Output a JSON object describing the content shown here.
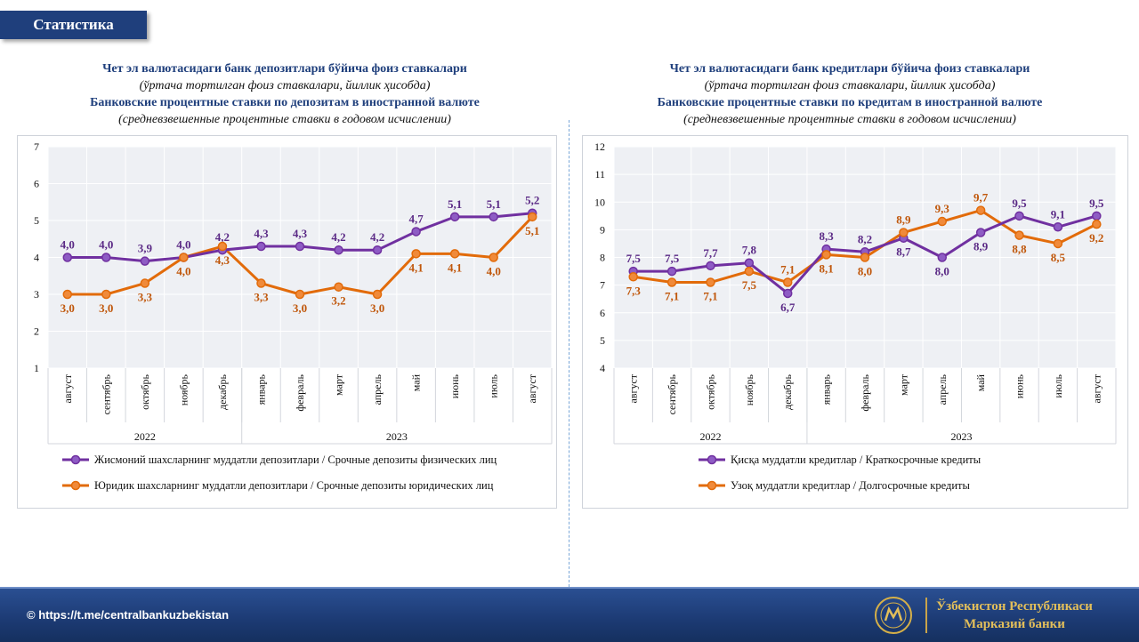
{
  "header": {
    "tab_label": "Статистика"
  },
  "left_title": {
    "line1": "Чет эл валютасидаги банк депозитлари бўйича фоиз ставкалари",
    "line2": "(ўртача тортилган фоиз ставкалари, йиллик ҳисобда)",
    "line3": "Банковские процентные ставки по депозитам в иностранной  валюте",
    "line4": "(средневзвешенные процентные ставки в годовом исчислении)"
  },
  "right_title": {
    "line1": "Чет эл валютасидаги банк кредитлари бўйича фоиз ставкалари",
    "line2": "(ўртача тортилган фоиз ставкалари, йиллик ҳисобда)",
    "line3": "Банковские процентные ставки по кредитам в иностранной  валюте",
    "line4": "(средневзвешенные процентные ставки в годовом исчислении)"
  },
  "footer": {
    "link": "© https://t.me/centralbankuzbekistan",
    "org_line1": "Ўзбекистон Республикаси",
    "org_line2": "Марказий банки"
  },
  "chart_data": [
    {
      "type": "line",
      "categories": [
        "август",
        "сентябрь",
        "октябрь",
        "ноябрь",
        "декабрь",
        "январь",
        "февраль",
        "март",
        "апрель",
        "май",
        "июнь",
        "июль",
        "август"
      ],
      "year_groups": [
        {
          "label": "2022",
          "count": 5
        },
        {
          "label": "2023",
          "count": 8
        }
      ],
      "ylim": [
        1,
        7
      ],
      "yticks": [
        1,
        2,
        3,
        4,
        5,
        6,
        7
      ],
      "grid": true,
      "legend_position": "bottom",
      "series": [
        {
          "name": "Жисмоний  шахсларнинг  муддатли  депозитлари  / Срочные депозиты  физических  лиц",
          "color": "#7030a0",
          "values": [
            4.0,
            4.0,
            3.9,
            4.0,
            4.2,
            4.3,
            4.3,
            4.2,
            4.2,
            4.7,
            5.1,
            5.1,
            5.2
          ],
          "labels": [
            "4,0",
            "4,0",
            "3,9",
            "4,0",
            "4,2",
            "4,3",
            "4,3",
            "4,2",
            "4,2",
            "4,7",
            "5,1",
            "5,1",
            "5,2"
          ],
          "label_pos": [
            "above",
            "above",
            "above",
            "above",
            "above",
            "above",
            "above",
            "above",
            "above",
            "above",
            "above",
            "above",
            "above"
          ]
        },
        {
          "name": "Юридик  шахсларнинг  муддатли  депозитлари  / Срочные депозиты  юридических  лиц",
          "color": "#e26b0a",
          "values": [
            3.0,
            3.0,
            3.3,
            4.0,
            4.3,
            3.3,
            3.0,
            3.2,
            3.0,
            4.1,
            4.1,
            4.0,
            5.1
          ],
          "labels": [
            "3,0",
            "3,0",
            "3,3",
            "4,0",
            "4,3",
            "3,3",
            "3,0",
            "3,2",
            "3,0",
            "4,1",
            "4,1",
            "4,0",
            "5,1"
          ],
          "label_pos": [
            "below",
            "below",
            "below",
            "below",
            "below",
            "below",
            "below",
            "below",
            "below",
            "below",
            "below",
            "below",
            "below"
          ]
        }
      ]
    },
    {
      "type": "line",
      "categories": [
        "август",
        "сентябрь",
        "октябрь",
        "ноябрь",
        "декабрь",
        "январь",
        "февраль",
        "март",
        "апрель",
        "май",
        "июнь",
        "июль",
        "август"
      ],
      "year_groups": [
        {
          "label": "2022",
          "count": 5
        },
        {
          "label": "2023",
          "count": 8
        }
      ],
      "ylim": [
        4,
        12
      ],
      "yticks": [
        4,
        5,
        6,
        7,
        8,
        9,
        10,
        11,
        12
      ],
      "grid": true,
      "legend_position": "bottom",
      "series": [
        {
          "name": "Қисқа  муддатли  кредитлар  / Краткосрочные кредиты",
          "color": "#7030a0",
          "values": [
            7.5,
            7.5,
            7.7,
            7.8,
            6.7,
            8.3,
            8.2,
            8.7,
            8.0,
            8.9,
            9.5,
            9.1,
            9.5
          ],
          "labels": [
            "7,5",
            "7,5",
            "7,7",
            "7,8",
            "6,7",
            "8,3",
            "8,2",
            "8,7",
            "8,0",
            "8,9",
            "9,5",
            "9,1",
            "9,5"
          ],
          "label_pos": [
            "above",
            "above",
            "above",
            "above",
            "below",
            "above",
            "above",
            "below",
            "below",
            "below",
            "above",
            "above",
            "above"
          ]
        },
        {
          "name": "Узоқ  муддатли  кредитлар  / Долгосрочные кредиты",
          "color": "#e26b0a",
          "values": [
            7.3,
            7.1,
            7.1,
            7.5,
            7.1,
            8.1,
            8.0,
            8.9,
            9.3,
            9.7,
            8.8,
            8.5,
            9.2
          ],
          "labels": [
            "7,3",
            "7,1",
            "7,1",
            "7,5",
            "7,1",
            "8,1",
            "8,0",
            "8,9",
            "9,3",
            "9,7",
            "8,8",
            "8,5",
            "9,2"
          ],
          "label_pos": [
            "below",
            "below",
            "below",
            "below",
            "above",
            "below",
            "below",
            "above",
            "above",
            "above",
            "below",
            "below",
            "below"
          ]
        }
      ]
    }
  ]
}
